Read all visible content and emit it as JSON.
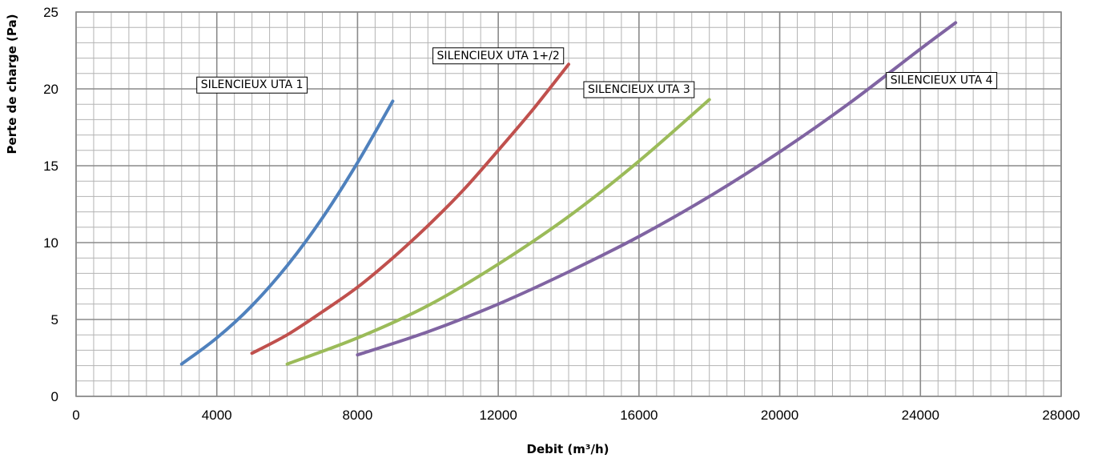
{
  "chart_data": {
    "type": "line",
    "title": "",
    "xlabel": "Debit (m³/h)",
    "ylabel": "Perte de charge (Pa)",
    "xlim": [
      0,
      28000
    ],
    "ylim": [
      0,
      25
    ],
    "x_ticks": [
      "0",
      "4000",
      "8000",
      "12000",
      "16000",
      "20000",
      "24000",
      "28000"
    ],
    "y_ticks": [
      "0",
      "5",
      "10",
      "15",
      "20",
      "25"
    ],
    "grid": true,
    "legend": "none",
    "series": [
      {
        "name": "SILENCIEUX UTA 1",
        "color": "#4f81bd",
        "x": [
          3000,
          4000,
          5000,
          6000,
          7000,
          8000,
          9000
        ],
        "y": [
          2.1,
          3.8,
          5.9,
          8.5,
          11.6,
          15.2,
          19.2
        ]
      },
      {
        "name": "SILENCIEUX UTA 1+/2",
        "color": "#c0504d",
        "x": [
          5000,
          6000,
          7000,
          8000,
          9000,
          10000,
          11000,
          12000,
          13000,
          14000
        ],
        "y": [
          2.8,
          4.0,
          5.5,
          7.1,
          9.0,
          11.1,
          13.4,
          16.0,
          18.7,
          21.6
        ]
      },
      {
        "name": "SILENCIEUX UTA 3",
        "color": "#9bbb59",
        "x": [
          6000,
          8000,
          10000,
          12000,
          14000,
          16000,
          18000
        ],
        "y": [
          2.1,
          3.8,
          5.9,
          8.6,
          11.7,
          15.3,
          19.3
        ]
      },
      {
        "name": "SILENCIEUX UTA 4",
        "color": "#8064a2",
        "x": [
          8000,
          10000,
          12000,
          14000,
          16000,
          18000,
          20000,
          22000,
          24000,
          25000
        ],
        "y": [
          2.7,
          4.2,
          6.0,
          8.1,
          10.4,
          13.0,
          15.9,
          19.1,
          22.6,
          24.3
        ]
      }
    ],
    "annotations": [
      {
        "text": "SILENCIEUX UTA 1",
        "series": 0
      },
      {
        "text": "SILENCIEUX UTA 1+/2",
        "series": 1
      },
      {
        "text": "SILENCIEUX UTA 3",
        "series": 2
      },
      {
        "text": "SILENCIEUX UTA 4",
        "series": 3
      }
    ]
  }
}
